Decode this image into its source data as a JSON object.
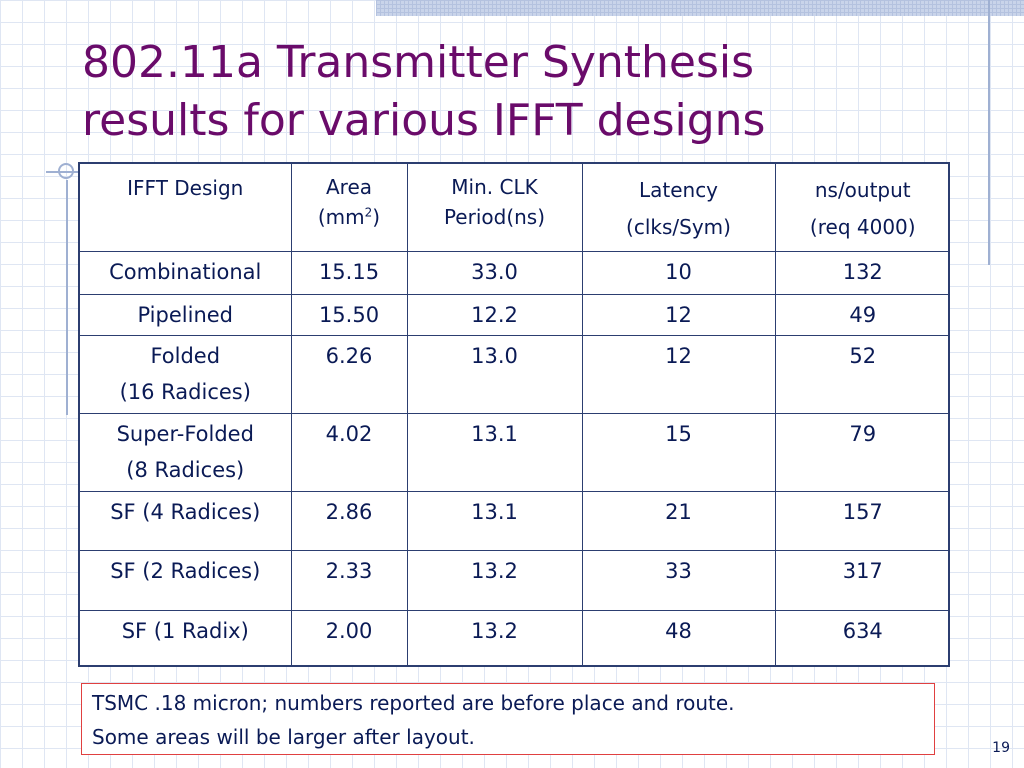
{
  "slide": {
    "title_line1": "802.11a Transmitter Synthesis",
    "title_line2": "results for various IFFT designs",
    "page_number": "19",
    "colors": {
      "title": "#6a0b6a",
      "text": "#0a1a55",
      "table_border": "#2c3e70",
      "note_border": "#e04040",
      "grid": "#dfe6f3"
    }
  },
  "table": {
    "headers": [
      {
        "line1": "IFFT Design",
        "line2": ""
      },
      {
        "line1": "Area",
        "line2_pre": "(mm",
        "line2_sup": "2",
        "line2_post": ")"
      },
      {
        "line1": "Min. CLK",
        "line2": "Period(ns)"
      },
      {
        "line1": "Latency",
        "line2": "(clks/Sym)"
      },
      {
        "line1": "ns/output",
        "line2": "(req 4000)"
      }
    ],
    "rows": [
      {
        "design_line1": "Combinational",
        "design_line2": "",
        "area": "15.15",
        "clk": "33.0",
        "latency": "10",
        "ns_output": "132"
      },
      {
        "design_line1": "Pipelined",
        "design_line2": "",
        "area": "15.50",
        "clk": "12.2",
        "latency": "12",
        "ns_output": "49"
      },
      {
        "design_line1": "Folded",
        "design_line2": "(16 Radices)",
        "area": "6.26",
        "clk": "13.0",
        "latency": "12",
        "ns_output": "52"
      },
      {
        "design_line1": "Super-Folded",
        "design_line2": "(8 Radices)",
        "area": "4.02",
        "clk": "13.1",
        "latency": "15",
        "ns_output": "79"
      },
      {
        "design_line1": "SF (4 Radices)",
        "design_line2": "",
        "area": "2.86",
        "clk": "13.1",
        "latency": "21",
        "ns_output": "157"
      },
      {
        "design_line1": "SF (2 Radices)",
        "design_line2": "",
        "area": "2.33",
        "clk": "13.2",
        "latency": "33",
        "ns_output": "317"
      },
      {
        "design_line1": "SF (1 Radix)",
        "design_line2": "",
        "area": "2.00",
        "clk": "13.2",
        "latency": "48",
        "ns_output": "634"
      }
    ]
  },
  "note": {
    "line1": "TSMC .18 micron; numbers reported are before place and route.",
    "line2": "Some areas will be larger after layout."
  }
}
